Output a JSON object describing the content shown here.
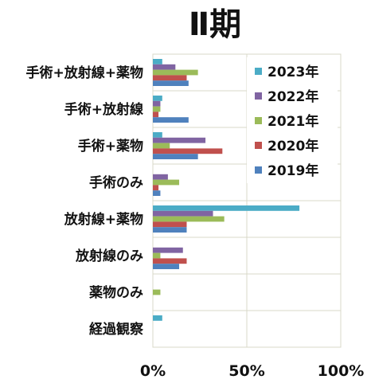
{
  "chart_data": {
    "type": "bar",
    "orientation": "horizontal",
    "title": "Ⅱ期",
    "categories": [
      "手術+放射線+薬物",
      "手術+放射線",
      "手術+薬物",
      "手術のみ",
      "放射線+薬物",
      "放射線のみ",
      "薬物のみ",
      "経過観察"
    ],
    "xlim": [
      0,
      100
    ],
    "xticks": [
      "0%",
      "50%",
      "100%"
    ],
    "grid": true,
    "legend_position": "top-right",
    "series": [
      {
        "name": "2023年",
        "color": "#4bacc6",
        "values": [
          5,
          5,
          5,
          0,
          78,
          0,
          0,
          5
        ]
      },
      {
        "name": "2022年",
        "color": "#8064a2",
        "values": [
          12,
          4,
          28,
          8,
          32,
          16,
          0,
          0
        ]
      },
      {
        "name": "2021年",
        "color": "#9bbb59",
        "values": [
          24,
          4,
          9,
          14,
          38,
          4,
          4,
          0
        ]
      },
      {
        "name": "2020年",
        "color": "#c0504d",
        "values": [
          18,
          3,
          37,
          3,
          18,
          18,
          0,
          0
        ]
      },
      {
        "name": "2019年",
        "color": "#4f81bd",
        "values": [
          19,
          19,
          24,
          4,
          18,
          14,
          0,
          0
        ]
      }
    ]
  }
}
